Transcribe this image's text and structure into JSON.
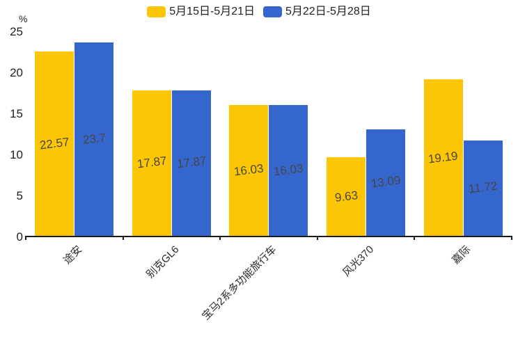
{
  "chart_data": {
    "type": "bar",
    "title": "",
    "xlabel": "",
    "ylabel": "%",
    "categories": [
      "途安",
      "别克GL6",
      "宝马2系多功能旅行车",
      "风光370",
      "嘉际"
    ],
    "series": [
      {
        "name": "5月15日-5月21日",
        "color": "#FDC604",
        "values": [
          22.57,
          17.87,
          16.03,
          9.63,
          19.19
        ]
      },
      {
        "name": "5月22日-5月28日",
        "color": "#3566CE",
        "values": [
          23.7,
          17.87,
          16.03,
          13.09,
          11.72
        ]
      }
    ],
    "ylim": [
      0,
      25
    ],
    "yticks": [
      0,
      5,
      10,
      15,
      20,
      25
    ],
    "grid": false,
    "legend_position": "top-center",
    "value_labels": "inside-center",
    "value_label_color": "#474747",
    "axis_color": "#1a1a1a",
    "background_color": "#ffffff"
  }
}
